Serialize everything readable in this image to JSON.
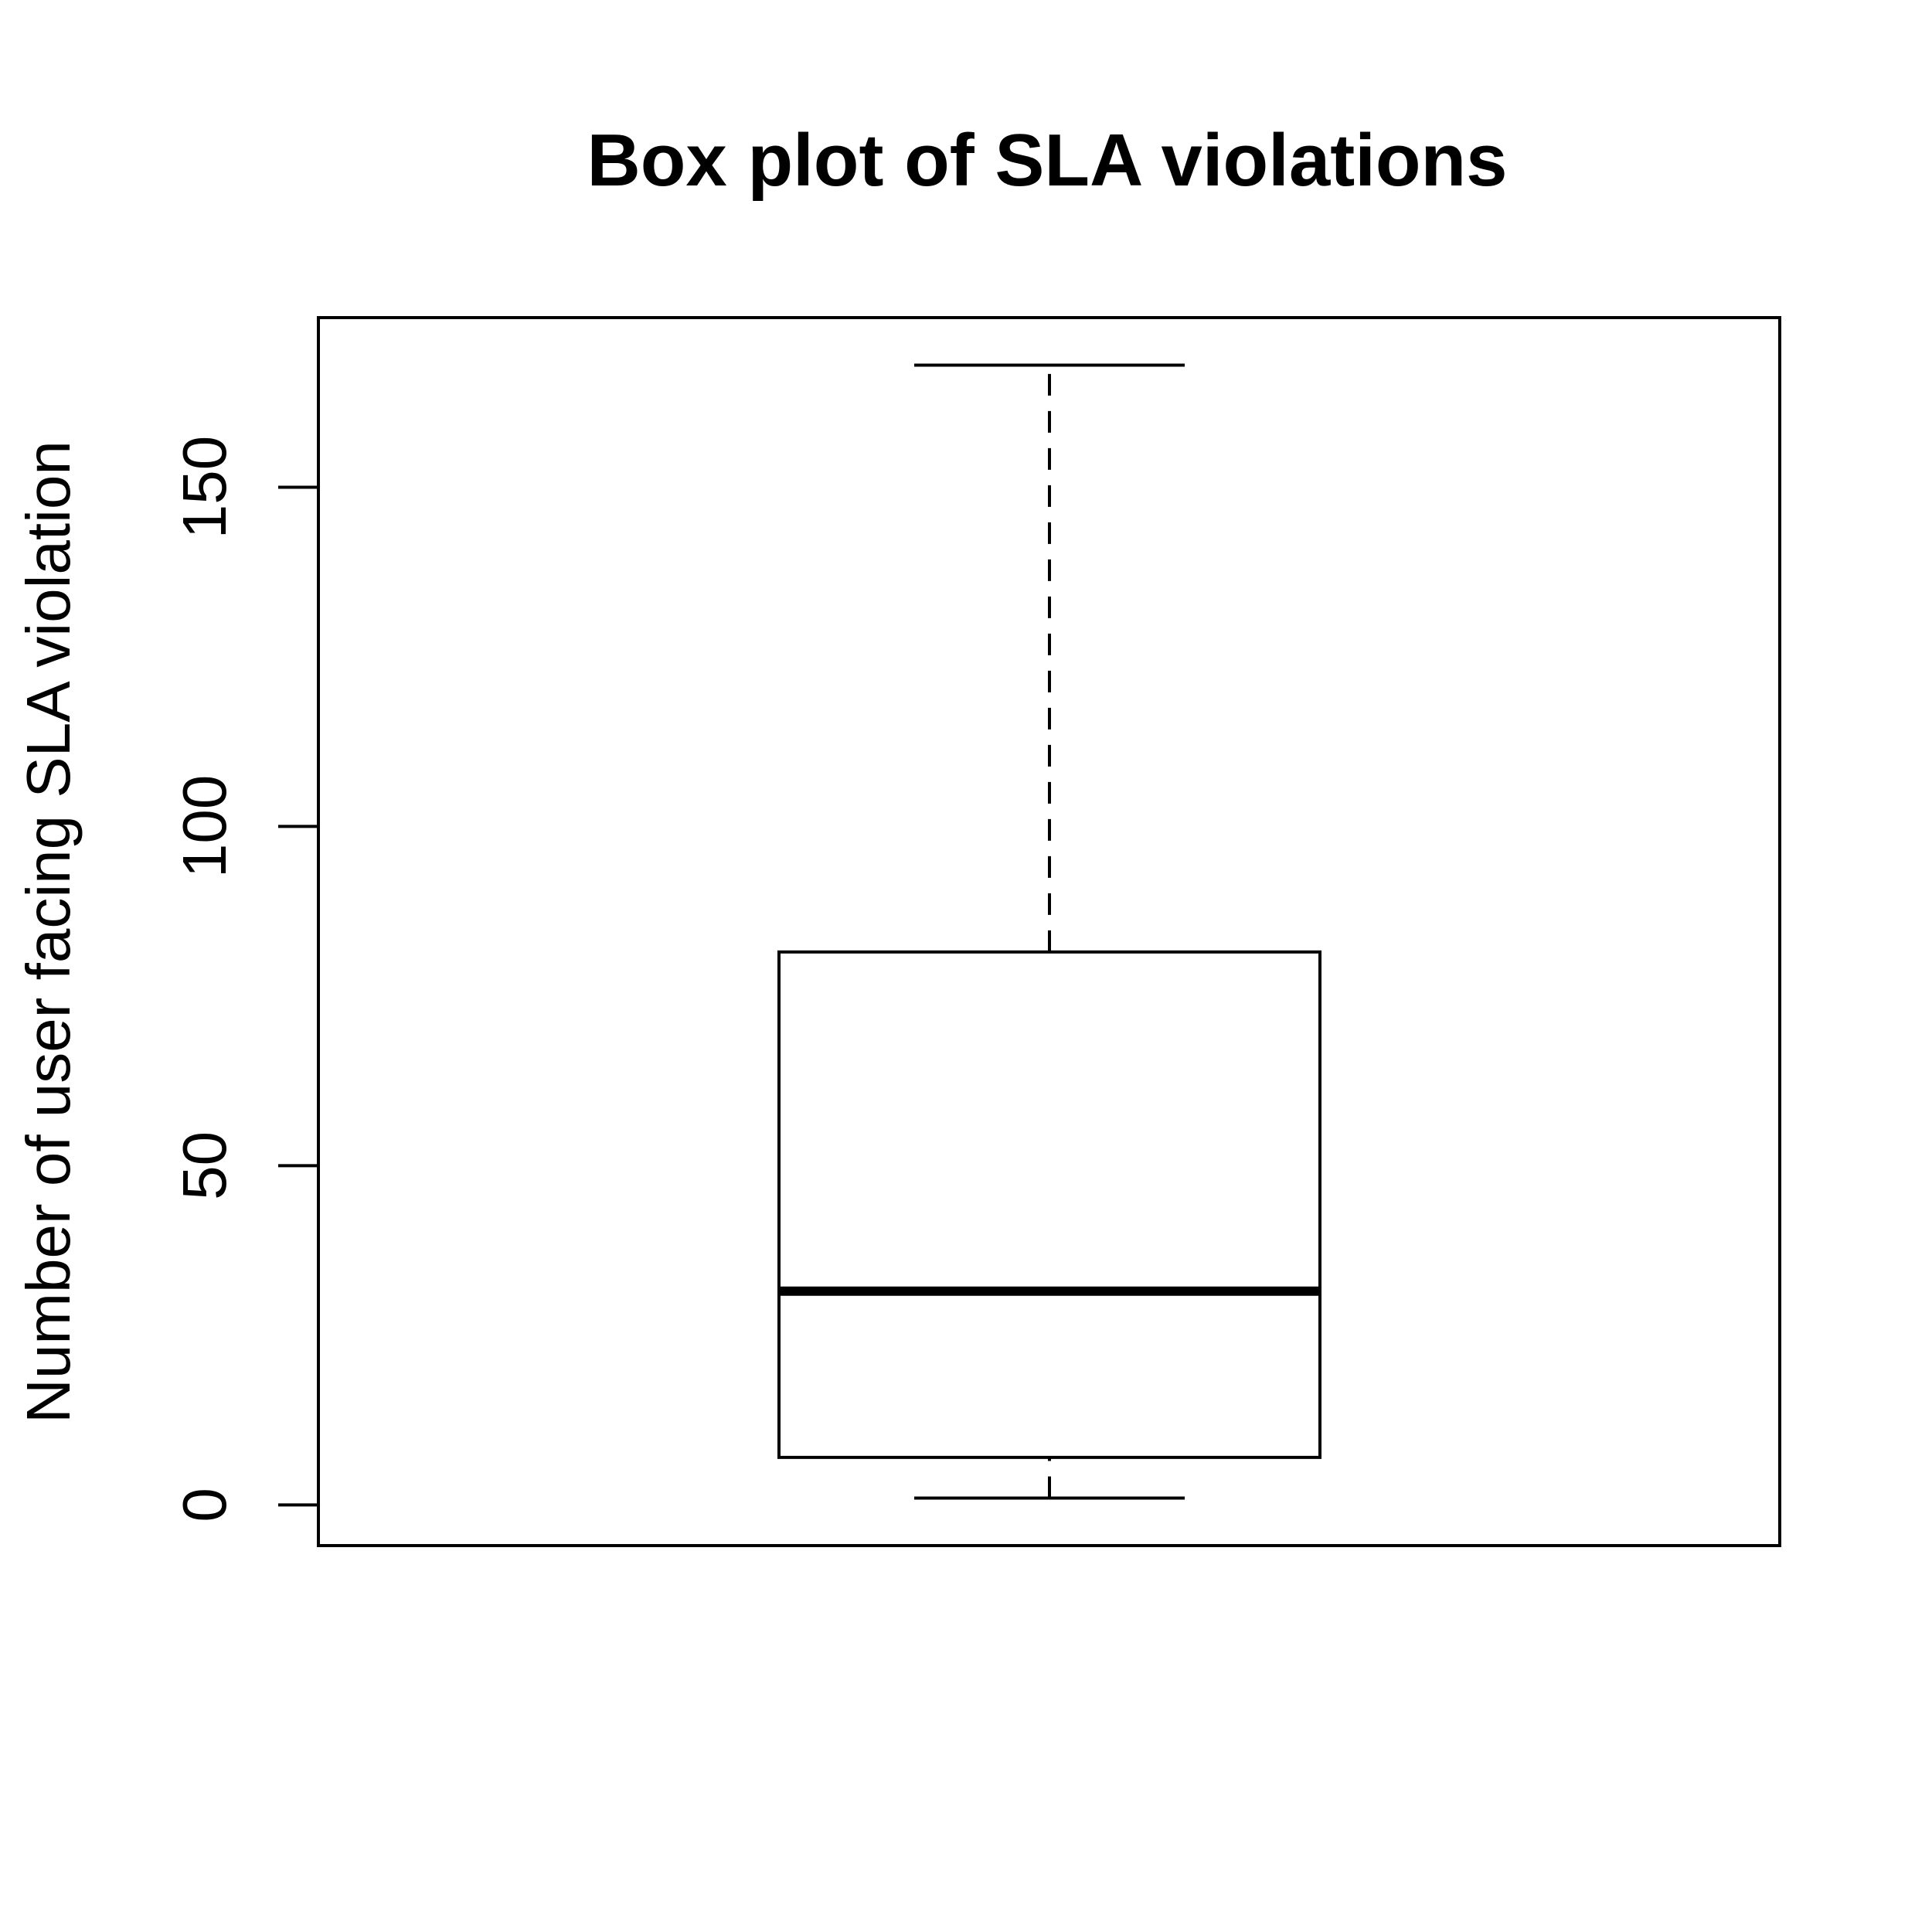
{
  "chart_data": {
    "type": "box",
    "title": "Box plot of SLA violations",
    "xlabel": "",
    "ylabel": "Number of user facing SLA violation",
    "ylim": [
      -6,
      175
    ],
    "yticks": [
      0,
      50,
      100,
      150
    ],
    "ytick_labels": [
      "0",
      "50",
      "100",
      "150"
    ],
    "grid": false,
    "series": [
      {
        "min": 1,
        "q1": 7,
        "median": 31.5,
        "q3": 81.5,
        "max": 168
      }
    ]
  }
}
